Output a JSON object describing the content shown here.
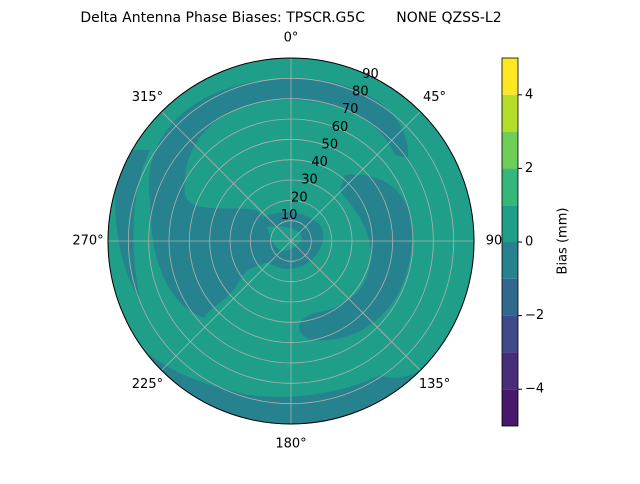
{
  "chart_data": {
    "type": "polar_contour",
    "title": "Delta Antenna Phase Biases: TPSCR.G5C       NONE QZSS-L2",
    "rlim": [
      0,
      90
    ],
    "rticks": [
      10,
      20,
      30,
      40,
      50,
      60,
      70,
      80,
      90
    ],
    "thetaticks": [
      {
        "value": 0,
        "label": "0°"
      },
      {
        "value": 45,
        "label": "45°"
      },
      90,
      {
        "value": 135,
        "label": "135°"
      },
      {
        "value": 180,
        "label": "180°"
      },
      {
        "value": 225,
        "label": "225°"
      },
      {
        "value": 270,
        "label": "270°"
      },
      {
        "value": 315,
        "label": "315°"
      }
    ],
    "grid": true,
    "colorbar": {
      "label": "Bias (mm)",
      "levels": [
        -5,
        -4,
        -3,
        -2,
        -1,
        0,
        1,
        2,
        3,
        4,
        5
      ],
      "colors": [
        "#48186a",
        "#472d7b",
        "#3e4a89",
        "#31688e",
        "#26828e",
        "#1f9e89",
        "#35b779",
        "#6ece58",
        "#b5de2b",
        "#fde725"
      ],
      "ticks": [
        {
          "value": -4,
          "label": "−4"
        },
        {
          "value": -2,
          "label": "−2"
        },
        0,
        2,
        4
      ]
    }
  }
}
